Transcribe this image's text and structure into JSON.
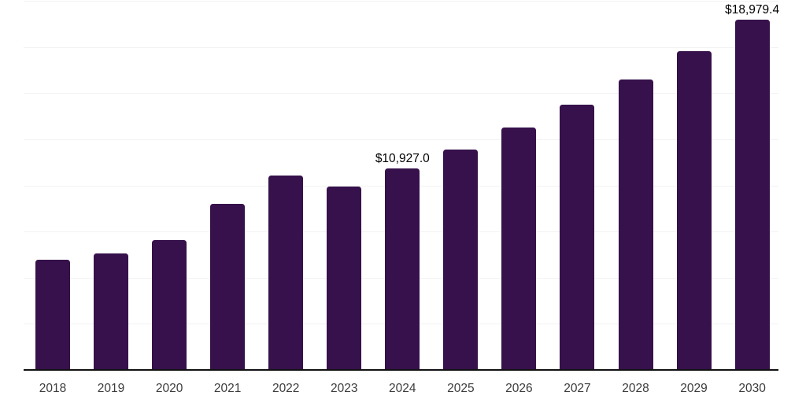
{
  "chart_data": {
    "type": "bar",
    "title": "",
    "xlabel": "",
    "ylabel": "",
    "categories": [
      "2018",
      "2019",
      "2020",
      "2021",
      "2022",
      "2023",
      "2024",
      "2025",
      "2026",
      "2027",
      "2028",
      "2029",
      "2030"
    ],
    "values": [
      5960,
      6300,
      7025,
      8980,
      10515,
      9950,
      10927.0,
      11960,
      13155,
      14390,
      15750,
      17285,
      18979.4
    ],
    "data_labels": {
      "2024": "$10,927.0",
      "2030": "$18,979.4"
    },
    "ylim": [
      0,
      20000
    ],
    "gridline_interval": 2500,
    "grid": true,
    "legend": false,
    "y_tick_labels_shown": false,
    "colors": {
      "bar": "#36114b",
      "grid": "#f2f2f2",
      "axis": "#111111",
      "tick_label": "#3c3c3c",
      "data_label": "#000000",
      "background": "#ffffff"
    }
  }
}
